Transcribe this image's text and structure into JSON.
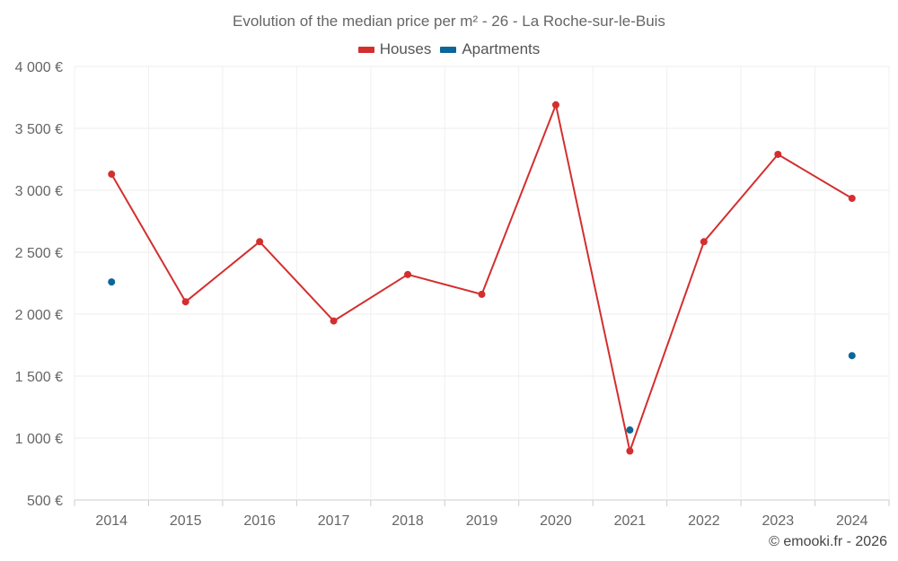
{
  "chart_data": {
    "type": "line",
    "title": "Evolution of the median price per m² - 26 - La Roche-sur-le-Buis",
    "categories": [
      "2014",
      "2015",
      "2016",
      "2017",
      "2018",
      "2019",
      "2020",
      "2021",
      "2022",
      "2023",
      "2024"
    ],
    "series": [
      {
        "name": "Houses",
        "color": "#d32f2f",
        "style": "line-with-markers",
        "values": [
          3130,
          2100,
          2585,
          1945,
          2320,
          2160,
          3690,
          895,
          2585,
          3290,
          2935
        ]
      },
      {
        "name": "Apartments",
        "color": "#0b6699",
        "style": "markers-only",
        "values": [
          2260,
          null,
          null,
          null,
          null,
          null,
          null,
          1065,
          null,
          null,
          1665
        ]
      }
    ],
    "ylim": [
      500,
      4000
    ],
    "yticks": [
      500,
      1000,
      1500,
      2000,
      2500,
      3000,
      3500,
      4000
    ],
    "ytick_labels": [
      "500 €",
      "1 000 €",
      "1 500 €",
      "2 000 €",
      "2 500 €",
      "3 000 €",
      "3 500 €",
      "4 000 €"
    ],
    "xlabel": "",
    "ylabel": "",
    "grid": true,
    "legend_position": "top-center"
  },
  "footer": {
    "credit": "© emooki.fr - 2026"
  }
}
